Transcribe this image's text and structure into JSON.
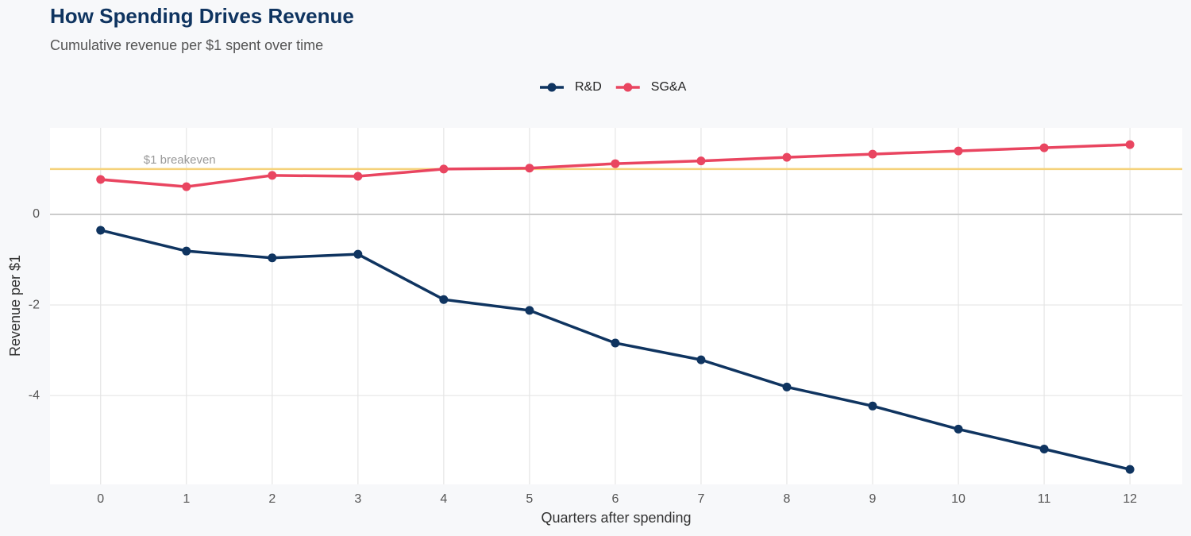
{
  "chart_data": {
    "type": "line",
    "title": "How Spending Drives Revenue",
    "subtitle": "Cumulative revenue per $1 spent over time",
    "x_label": "Quarters after spending",
    "y_label": "Revenue per $1",
    "x": [
      0,
      1,
      2,
      3,
      4,
      5,
      6,
      7,
      8,
      9,
      10,
      11,
      12
    ],
    "series": [
      {
        "name": "R&D",
        "color": "#0f3460",
        "values": [
          -0.35,
          -0.81,
          -0.96,
          -0.88,
          -1.88,
          -2.12,
          -2.84,
          -3.21,
          -3.81,
          -4.23,
          -4.74,
          -5.18,
          -5.63
        ]
      },
      {
        "name": "SG&A",
        "color": "#e94560",
        "values": [
          0.77,
          0.61,
          0.86,
          0.84,
          1.0,
          1.02,
          1.12,
          1.18,
          1.26,
          1.33,
          1.4,
          1.47,
          1.54
        ]
      }
    ],
    "reference_line": {
      "value": 1,
      "label": "$1 breakeven",
      "color": "#f5d27a"
    },
    "xlim": [
      -0.59,
      12.61
    ],
    "ylim": [
      -5.96,
      1.91
    ],
    "xticks": [
      0,
      1,
      2,
      3,
      4,
      5,
      6,
      7,
      8,
      9,
      10,
      11,
      12
    ],
    "yticks": [
      -4,
      -2,
      0
    ],
    "grid": true,
    "legend": "top"
  }
}
